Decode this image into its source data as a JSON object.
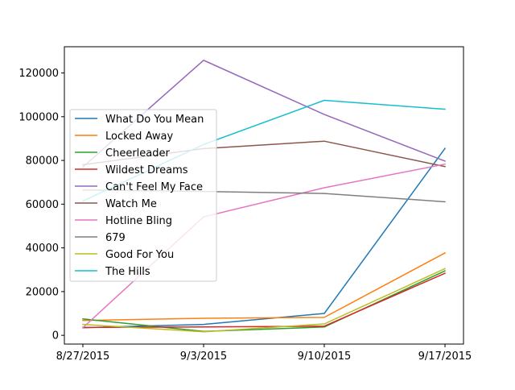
{
  "chart_data": {
    "type": "line",
    "title": "",
    "xlabel": "",
    "ylabel": "",
    "x": [
      "8/27/2015",
      "9/3/2015",
      "9/10/2015",
      "9/17/2015"
    ],
    "ylim": [
      -4000,
      132000
    ],
    "yticks": [
      0,
      20000,
      40000,
      60000,
      80000,
      100000,
      120000
    ],
    "ytick_labels": [
      "0",
      "20000",
      "40000",
      "60000",
      "80000",
      "100000",
      "120000"
    ],
    "grid": false,
    "legend_position": "center-left",
    "series": [
      {
        "name": "What Do You Mean",
        "color": "#1f77b4",
        "values": [
          3500,
          5000,
          10000,
          85500
        ]
      },
      {
        "name": "Locked Away",
        "color": "#ff7f0e",
        "values": [
          6800,
          7800,
          8200,
          37700
        ]
      },
      {
        "name": "Cheerleader",
        "color": "#2ca02c",
        "values": [
          7500,
          1800,
          3800,
          29500
        ]
      },
      {
        "name": "Wildest Dreams",
        "color": "#d62728",
        "values": [
          3600,
          3800,
          4200,
          28400
        ]
      },
      {
        "name": "Can't Feel My Face",
        "color": "#9467bd",
        "values": [
          77000,
          125800,
          101000,
          79700
        ]
      },
      {
        "name": "Watch Me",
        "color": "#8c564b",
        "values": [
          78000,
          85400,
          88800,
          77200
        ]
      },
      {
        "name": "Hotline Bling",
        "color": "#e377c2",
        "values": [
          3500,
          54200,
          67500,
          78300
        ]
      },
      {
        "name": "679",
        "color": "#7f7f7f",
        "values": [
          66500,
          65800,
          64900,
          61100
        ]
      },
      {
        "name": "Good For You",
        "color": "#bcbd22",
        "values": [
          5000,
          1600,
          5200,
          30500
        ]
      },
      {
        "name": "The Hills",
        "color": "#17becf",
        "values": [
          61400,
          87300,
          107500,
          103400
        ]
      }
    ]
  }
}
